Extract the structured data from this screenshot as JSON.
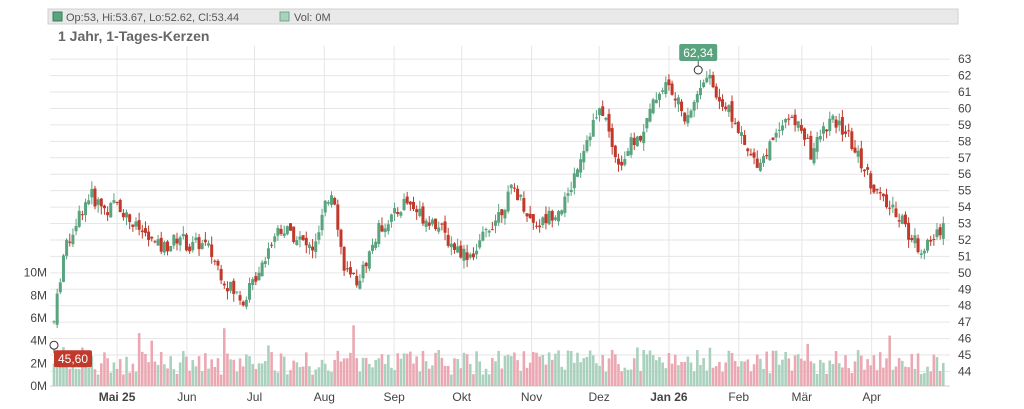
{
  "legend": {
    "ohlc_text": "Op:53, Hi:53.67, Lo:52.62, Cl:53.44",
    "vol_text": "Vol: 0M"
  },
  "chart_data": {
    "type": "candlestick",
    "title": "1 Jahr, 1-Tages-Kerzen",
    "colors": {
      "up": "#5aa37f",
      "down": "#c0392b",
      "up_volume": "#a9d1bd",
      "down_volume": "#eba8b2",
      "high_badge": "#5aa37f",
      "low_badge": "#c0392b"
    },
    "price_axis": {
      "min": 43.3,
      "max": 63.8,
      "ticks": [
        44,
        45,
        46,
        47,
        48,
        49,
        50,
        51,
        52,
        53,
        54,
        55,
        56,
        57,
        58,
        59,
        60,
        61,
        62,
        63
      ]
    },
    "volume_axis": {
      "min": 0,
      "max": 12,
      "unit": "M",
      "ticks": [
        0,
        2,
        4,
        6,
        8,
        10
      ],
      "tick_labels": [
        "0M",
        "2M",
        "4M",
        "6M",
        "8M",
        "10M"
      ]
    },
    "time_axis": {
      "start_day": 0,
      "end_day": 364,
      "labels": [
        {
          "text": "Mai 25",
          "day": 28,
          "major": true
        },
        {
          "text": "Jun",
          "day": 59,
          "major": false
        },
        {
          "text": "Jul",
          "day": 89,
          "major": false
        },
        {
          "text": "Aug",
          "day": 120,
          "major": false
        },
        {
          "text": "Sep",
          "day": 151,
          "major": false
        },
        {
          "text": "Okt",
          "day": 181,
          "major": false
        },
        {
          "text": "Nov",
          "day": 212,
          "major": false
        },
        {
          "text": "Dez",
          "day": 242,
          "major": false
        },
        {
          "text": "Jan 26",
          "day": 273,
          "major": true
        },
        {
          "text": "Feb",
          "day": 304,
          "major": false
        },
        {
          "text": "Mär",
          "day": 332,
          "major": false
        },
        {
          "text": "Apr",
          "day": 363,
          "major": false
        }
      ]
    },
    "price_path": [
      [
        0,
        47
      ],
      [
        4,
        51
      ],
      [
        8,
        52.5
      ],
      [
        12,
        53.8
      ],
      [
        16,
        54.8
      ],
      [
        20,
        54.2
      ],
      [
        24,
        53.8
      ],
      [
        28,
        54.3
      ],
      [
        32,
        53.5
      ],
      [
        36,
        52.8
      ],
      [
        40,
        52.4
      ],
      [
        44,
        51.8
      ],
      [
        48,
        51.5
      ],
      [
        52,
        51.8
      ],
      [
        56,
        52.3
      ],
      [
        60,
        51.5
      ],
      [
        64,
        51.8
      ],
      [
        68,
        51.6
      ],
      [
        72,
        50.6
      ],
      [
        76,
        49.5
      ],
      [
        80,
        48.8
      ],
      [
        84,
        48.4
      ],
      [
        88,
        49.3
      ],
      [
        92,
        50.6
      ],
      [
        96,
        51.8
      ],
      [
        100,
        52.8
      ],
      [
        104,
        52.5
      ],
      [
        108,
        52.2
      ],
      [
        112,
        51.6
      ],
      [
        116,
        51.5
      ],
      [
        120,
        53.8
      ],
      [
        124,
        55.2
      ],
      [
        128,
        50.8
      ],
      [
        132,
        49.4
      ],
      [
        136,
        49.8
      ],
      [
        140,
        51.2
      ],
      [
        144,
        52.6
      ],
      [
        148,
        53.2
      ],
      [
        152,
        53.6
      ],
      [
        156,
        54.4
      ],
      [
        160,
        53.9
      ],
      [
        164,
        53.4
      ],
      [
        168,
        53.2
      ],
      [
        172,
        52.6
      ],
      [
        176,
        51.8
      ],
      [
        180,
        51.4
      ],
      [
        184,
        51.1
      ],
      [
        188,
        51.4
      ],
      [
        192,
        52.6
      ],
      [
        196,
        53.3
      ],
      [
        200,
        54.2
      ],
      [
        204,
        55.2
      ],
      [
        208,
        54.3
      ],
      [
        212,
        53.1
      ],
      [
        216,
        53.0
      ],
      [
        220,
        53.5
      ],
      [
        224,
        53.9
      ],
      [
        228,
        54.5
      ],
      [
        232,
        56.5
      ],
      [
        236,
        58.0
      ],
      [
        240,
        59.3
      ],
      [
        244,
        59.9
      ],
      [
        248,
        57.5
      ],
      [
        252,
        56.7
      ],
      [
        256,
        57.8
      ],
      [
        260,
        58.2
      ],
      [
        264,
        59.5
      ],
      [
        268,
        61.0
      ],
      [
        272,
        61.5
      ],
      [
        276,
        60.5
      ],
      [
        280,
        59.6
      ],
      [
        284,
        60.2
      ],
      [
        288,
        62.0
      ],
      [
        292,
        61.6
      ],
      [
        296,
        60.4
      ],
      [
        300,
        59.8
      ],
      [
        304,
        58.6
      ],
      [
        308,
        57.2
      ],
      [
        312,
        56.8
      ],
      [
        316,
        57.2
      ],
      [
        320,
        58.5
      ],
      [
        324,
        59.5
      ],
      [
        328,
        59.2
      ],
      [
        332,
        58.8
      ],
      [
        336,
        57.2
      ],
      [
        340,
        58.3
      ],
      [
        344,
        59.2
      ],
      [
        348,
        59.0
      ],
      [
        352,
        58.5
      ],
      [
        356,
        57.3
      ],
      [
        360,
        56.3
      ],
      [
        364,
        55.2
      ],
      [
        368,
        54.3
      ],
      [
        372,
        53.8
      ],
      [
        376,
        53.5
      ],
      [
        380,
        52.2
      ],
      [
        384,
        51.6
      ],
      [
        388,
        51.6
      ],
      [
        392,
        52.4
      ],
      [
        396,
        53.3
      ]
    ],
    "high_marker": {
      "day": 286,
      "value": 62.34,
      "label": "62,34"
    },
    "low_marker": {
      "day": 0,
      "value": 45.6,
      "label": "45,60"
    },
    "last": {
      "open": 53,
      "high": 53.67,
      "low": 52.62,
      "close": 53.44,
      "volume": 0
    }
  }
}
